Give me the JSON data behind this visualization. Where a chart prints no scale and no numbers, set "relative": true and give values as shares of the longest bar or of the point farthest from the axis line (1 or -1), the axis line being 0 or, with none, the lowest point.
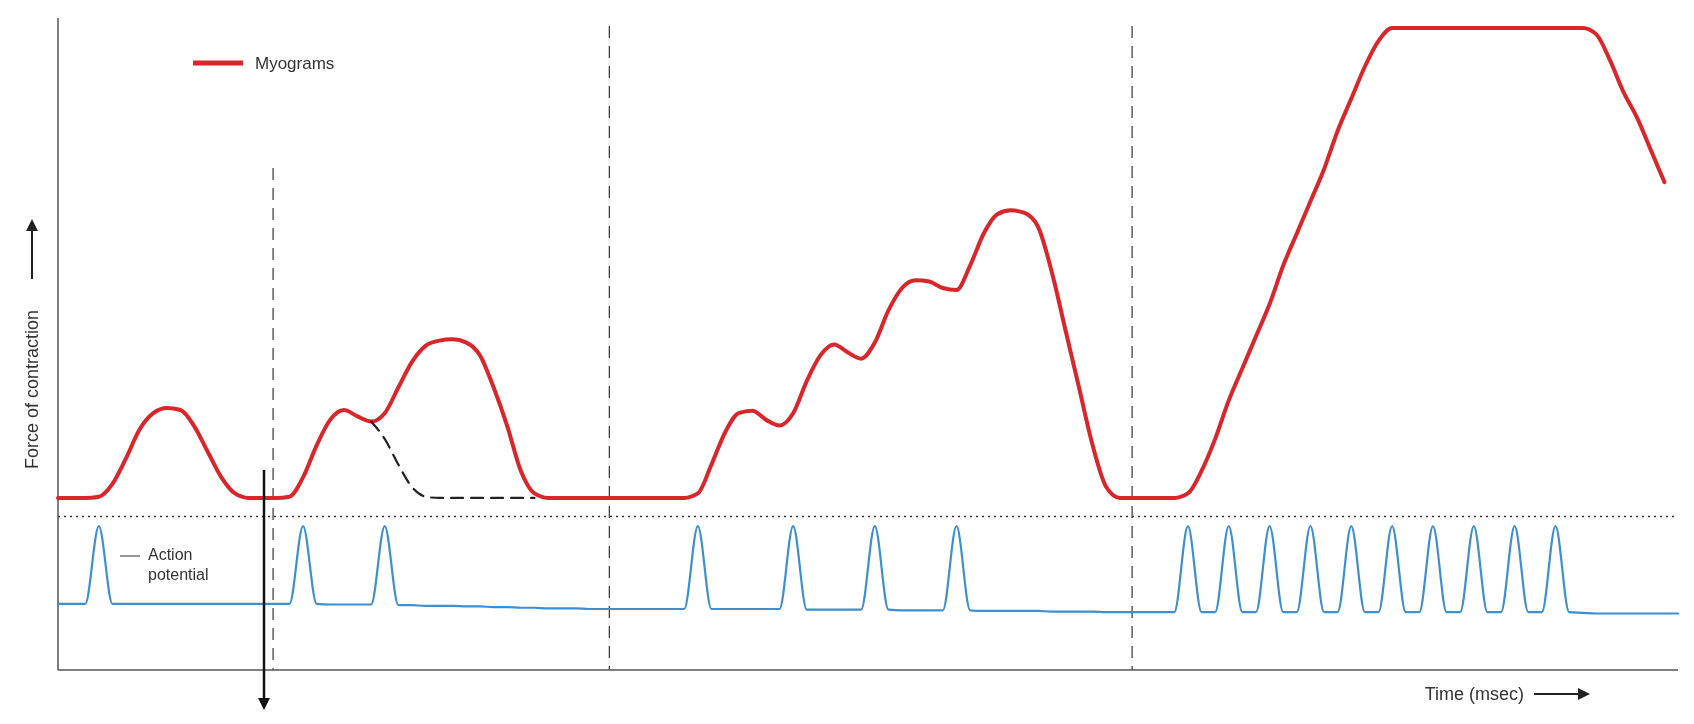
{
  "chart_data": {
    "type": "line",
    "relative": true,
    "xlabel": "Time (msec)",
    "ylabel": "Force of contraction",
    "categories": [
      null,
      null,
      null,
      null,
      null,
      null,
      null,
      null,
      null,
      null,
      null,
      null,
      null,
      null,
      null,
      null,
      null,
      null,
      null,
      null,
      null,
      null,
      null,
      null,
      null,
      null,
      null,
      null,
      null,
      null,
      null,
      null,
      null,
      null,
      null,
      null,
      null,
      null,
      null,
      null,
      null,
      null,
      null,
      null,
      null,
      null,
      null,
      null,
      null,
      null,
      null,
      null,
      null,
      null,
      null,
      null,
      null,
      null,
      null,
      null,
      null,
      null,
      null,
      null,
      null,
      null,
      null,
      null,
      null,
      null,
      null,
      null,
      null,
      null,
      null,
      null,
      null,
      null,
      null,
      null,
      null,
      null,
      null,
      null,
      null,
      null,
      null,
      null,
      null,
      null,
      null,
      null,
      null,
      null,
      null,
      null,
      null,
      null,
      null,
      null,
      null,
      null,
      null,
      null,
      null,
      null,
      null,
      null,
      null,
      null,
      null,
      null,
      null,
      null,
      null,
      null,
      null,
      null,
      null,
      null
    ],
    "series": [
      {
        "name": "Myograms",
        "color": "#d9262b",
        "values": [
          0.268,
          0.268,
          0.268,
          0.27,
          0.29,
          0.33,
          0.375,
          0.4,
          0.408,
          0.405,
          0.38,
          0.34,
          0.3,
          0.275,
          0.268,
          0.268,
          0.268,
          0.27,
          0.3,
          0.35,
          0.39,
          0.405,
          0.395,
          0.387,
          0.4,
          0.44,
          0.48,
          0.505,
          0.513,
          0.515,
          0.51,
          0.49,
          0.44,
          0.38,
          0.31,
          0.275,
          0.268,
          0.268,
          0.268,
          0.268,
          0.268,
          0.268,
          0.268,
          0.268,
          0.268,
          0.268,
          0.268,
          0.275,
          0.32,
          0.37,
          0.4,
          0.404,
          0.39,
          0.381,
          0.4,
          0.45,
          0.49,
          0.507,
          0.495,
          0.485,
          0.51,
          0.56,
          0.595,
          0.607,
          0.605,
          0.595,
          0.592,
          0.63,
          0.68,
          0.71,
          0.716,
          0.712,
          0.69,
          0.62,
          0.53,
          0.44,
          0.35,
          0.285,
          0.268,
          0.268,
          0.268,
          0.268,
          0.268,
          0.275,
          0.31,
          0.36,
          0.42,
          0.47,
          0.52,
          0.57,
          0.63,
          0.68,
          0.73,
          0.78,
          0.84,
          0.89,
          0.94,
          0.98,
          1,
          1,
          1,
          1,
          1,
          1,
          1,
          1,
          1,
          1,
          1,
          1,
          1,
          1,
          1,
          0.99,
          0.95,
          0.9,
          0.86,
          0.81,
          0.76,
          null
        ]
      },
      {
        "color": "#222222",
        "line_style": "dashed",
        "values": [
          null,
          null,
          null,
          null,
          null,
          null,
          null,
          null,
          null,
          null,
          null,
          null,
          null,
          null,
          null,
          null,
          null,
          null,
          null,
          null,
          null,
          null,
          null,
          0.387,
          0.36,
          0.32,
          0.285,
          0.27,
          0.268,
          0.268,
          0.268,
          0.268,
          0.268,
          0.268,
          0.268,
          0.268,
          null,
          null,
          null,
          null,
          null,
          null,
          null,
          null,
          null,
          null,
          null,
          null,
          null,
          null,
          null,
          null,
          null,
          null,
          null,
          null,
          null,
          null,
          null,
          null,
          null,
          null,
          null,
          null,
          null,
          null,
          null,
          null,
          null,
          null,
          null,
          null,
          null,
          null,
          null,
          null,
          null,
          null,
          null,
          null,
          null,
          null,
          null,
          null,
          null,
          null,
          null,
          null,
          null,
          null,
          null,
          null,
          null,
          null,
          null,
          null,
          null,
          null,
          null,
          null,
          null,
          null,
          null,
          null,
          null,
          null,
          null,
          null,
          null,
          null,
          null,
          null,
          null,
          null,
          null,
          null,
          null,
          null,
          null,
          null
        ]
      },
      {
        "color": "#3d8fd1",
        "values": [
          0.103,
          0.103,
          0.103,
          0.224,
          0.103,
          0.103,
          0.103,
          0.103,
          0.103,
          0.103,
          0.103,
          0.103,
          0.103,
          0.103,
          0.103,
          0.103,
          0.103,
          0.103,
          0.224,
          0.103,
          0.102,
          0.102,
          0.102,
          0.102,
          0.224,
          0.101,
          0.101,
          0.1,
          0.1,
          0.1,
          0.099,
          0.099,
          0.098,
          0.098,
          0.097,
          0.097,
          0.096,
          0.096,
          0.096,
          0.095,
          0.095,
          0.095,
          0.095,
          0.095,
          0.095,
          0.095,
          0.095,
          0.224,
          0.095,
          0.095,
          0.095,
          0.095,
          0.095,
          0.095,
          0.224,
          0.094,
          0.094,
          0.094,
          0.094,
          0.094,
          0.224,
          0.094,
          0.093,
          0.093,
          0.093,
          0.093,
          0.224,
          0.093,
          0.092,
          0.092,
          0.092,
          0.092,
          0.092,
          0.091,
          0.091,
          0.091,
          0.091,
          0.09,
          0.09,
          0.09,
          0.09,
          0.09,
          0.09,
          0.224,
          0.09,
          0.09,
          0.224,
          0.09,
          0.09,
          0.224,
          0.09,
          0.09,
          0.224,
          0.09,
          0.09,
          0.224,
          0.09,
          0.09,
          0.224,
          0.09,
          0.09,
          0.224,
          0.09,
          0.09,
          0.224,
          0.09,
          0.09,
          0.224,
          0.09,
          0.09,
          0.224,
          0.09,
          0.089,
          0.088,
          0.088,
          0.088,
          0.088,
          0.088,
          0.088,
          0.088
        ]
      }
    ],
    "ref_lines": [
      {
        "axis": "y",
        "value": 0.239,
        "color": "#333333",
        "line_style": "dotted"
      }
    ],
    "annotations": [
      "Action potential"
    ],
    "legend": "top left",
    "grid": false,
    "marker": "none",
    "line_style": "solid"
  }
}
